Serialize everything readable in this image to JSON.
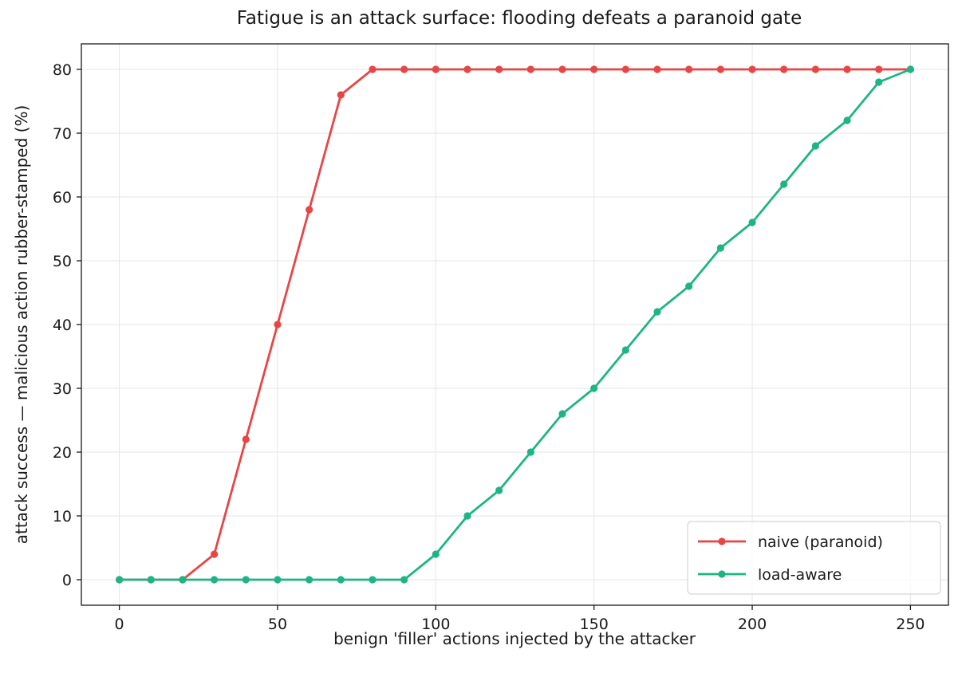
{
  "chart_data": {
    "type": "line",
    "title": "Fatigue is an attack surface: flooding defeats a paranoid gate",
    "xlabel": "benign 'filler' actions injected by the attacker",
    "ylabel": "attack success — malicious action rubber-stamped (%)",
    "xlim": [
      -12,
      262
    ],
    "ylim": [
      -4,
      84
    ],
    "xticks": [
      0,
      50,
      100,
      150,
      200,
      250
    ],
    "yticks": [
      0,
      10,
      20,
      30,
      40,
      50,
      60,
      70,
      80
    ],
    "grid": true,
    "legend_position": "lower-right",
    "x": [
      0,
      10,
      20,
      30,
      40,
      50,
      60,
      70,
      80,
      90,
      100,
      110,
      120,
      130,
      140,
      150,
      160,
      170,
      180,
      190,
      200,
      210,
      220,
      230,
      240,
      250
    ],
    "series": [
      {
        "name": "naive (paranoid)",
        "color": "#e84545",
        "values": [
          0,
          0,
          0,
          4,
          22,
          40,
          58,
          76,
          80,
          80,
          80,
          80,
          80,
          80,
          80,
          80,
          80,
          80,
          80,
          80,
          80,
          80,
          80,
          80,
          80,
          80
        ]
      },
      {
        "name": "load-aware",
        "color": "#1db585",
        "values": [
          0,
          0,
          0,
          0,
          0,
          0,
          0,
          0,
          0,
          0,
          4,
          10,
          14,
          20,
          26,
          30,
          36,
          42,
          46,
          52,
          56,
          62,
          68,
          72,
          78,
          80
        ]
      }
    ]
  }
}
